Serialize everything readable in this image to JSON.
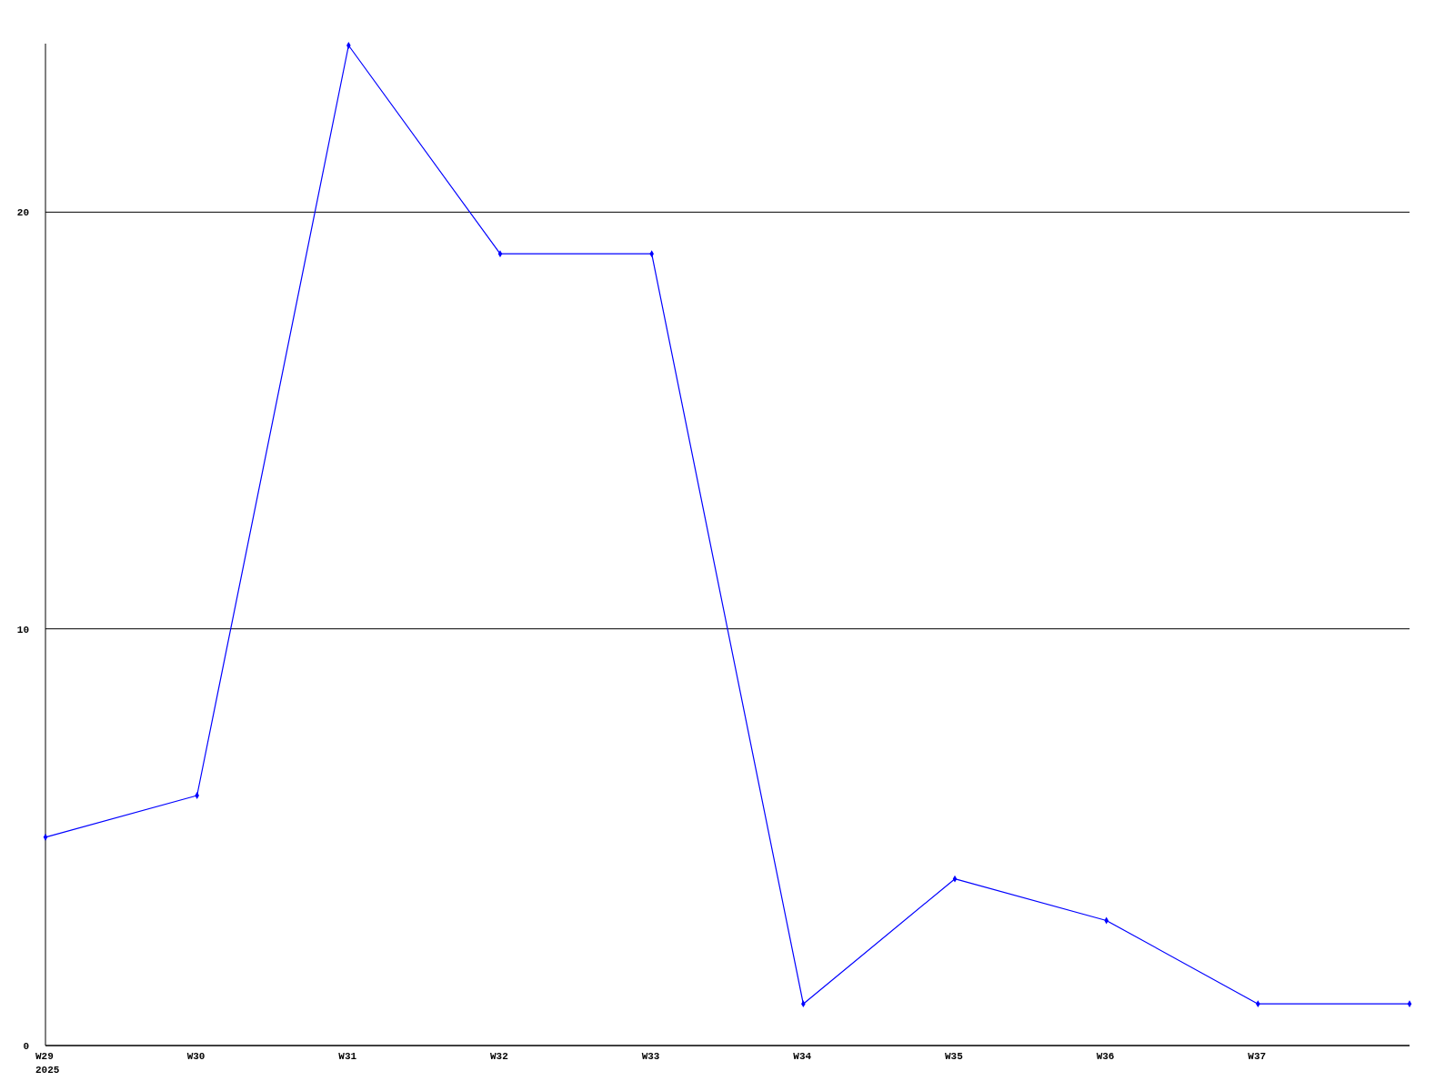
{
  "chart_data": {
    "type": "line",
    "categories": [
      "W29\n2025",
      "W30",
      "W31",
      "W32",
      "W33",
      "W34",
      "W35",
      "W36",
      "W37",
      null
    ],
    "series": [
      {
        "color": "#0000ff",
        "values": [
          5,
          6,
          24,
          19,
          19,
          1,
          4,
          3,
          1,
          1
        ]
      }
    ],
    "ylim": [
      0,
      24
    ],
    "yticks": [
      0,
      10,
      20
    ],
    "grid": "y",
    "marker": "diamond",
    "line_style": "solid"
  }
}
